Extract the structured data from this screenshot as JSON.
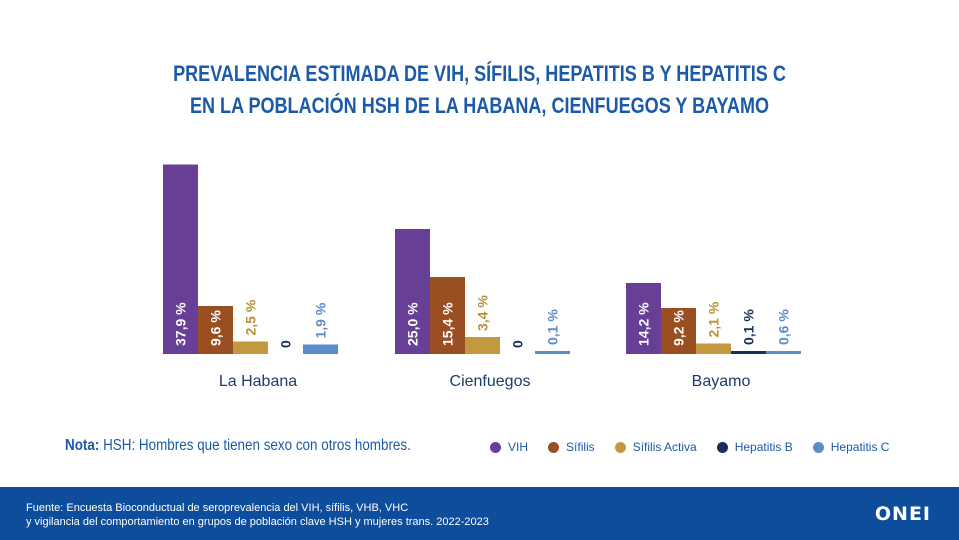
{
  "title": {
    "line1": "PREVALENCIA ESTIMADA DE VIH, SÍFILIS, HEPATITIS B Y HEPATITIS C",
    "line2": "EN LA POBLACIÓN HSH DE LA HABANA, CIENFUEGOS Y BAYAMO"
  },
  "chart_data": {
    "type": "bar",
    "title": "PREVALENCIA ESTIMADA DE VIH, SÍFILIS, HEPATITIS B Y HEPATITIS C EN LA POBLACIÓN HSH DE LA HABANA, CIENFUEGOS Y BAYAMO",
    "categories": [
      "La Habana",
      "Cienfuegos",
      "Bayamo"
    ],
    "series": [
      {
        "name": "VIH",
        "color": "#683f97",
        "values": [
          37.9,
          25.0,
          14.2
        ],
        "labels": [
          "37,9 %",
          "25,0 %",
          "14,2 %"
        ],
        "label_color": "#ffffff"
      },
      {
        "name": "Sífilis",
        "color": "#9a4f22",
        "values": [
          9.6,
          15.4,
          9.2
        ],
        "labels": [
          "9,6 %",
          "15,4 %",
          "9,2 %"
        ],
        "label_color": "#ffffff"
      },
      {
        "name": "Sífilis Activa",
        "color": "#c3993f",
        "values": [
          2.5,
          3.4,
          2.1
        ],
        "labels": [
          "2,5 %",
          "3,4 %",
          "2,1 %"
        ],
        "label_color": "#b8913a"
      },
      {
        "name": "Hepatitis B",
        "color": "#16305a",
        "values": [
          0,
          0,
          0.1
        ],
        "labels": [
          "0",
          "0",
          "0,1 %"
        ],
        "label_color": "#16305a"
      },
      {
        "name": "Hepatitis C",
        "color": "#5b8cc7",
        "values": [
          1.9,
          0.1,
          0.6
        ],
        "labels": [
          "1,9 %",
          "0,1 %",
          "0,6 %"
        ],
        "label_color": "#5b8cc7"
      }
    ],
    "xlabel": "",
    "ylabel": "",
    "grid": false,
    "legend": "bottom-right"
  },
  "note": {
    "label": "Nota:",
    "text": "HSH: Hombres que tienen sexo con otros hombres."
  },
  "footer": {
    "source_line1": "Fuente: Encuesta Bioconductual de seroprevalencia del VIH, sífilis, VHB, VHC",
    "source_line2": "y vigilancia del comportamiento en grupos de población clave HSH y mujeres trans. 2022-2023",
    "logo": "ONEI",
    "background": "#0d4d9c"
  },
  "colors": {
    "title": "#1c5aa8",
    "accent": "#1c5aa8"
  }
}
